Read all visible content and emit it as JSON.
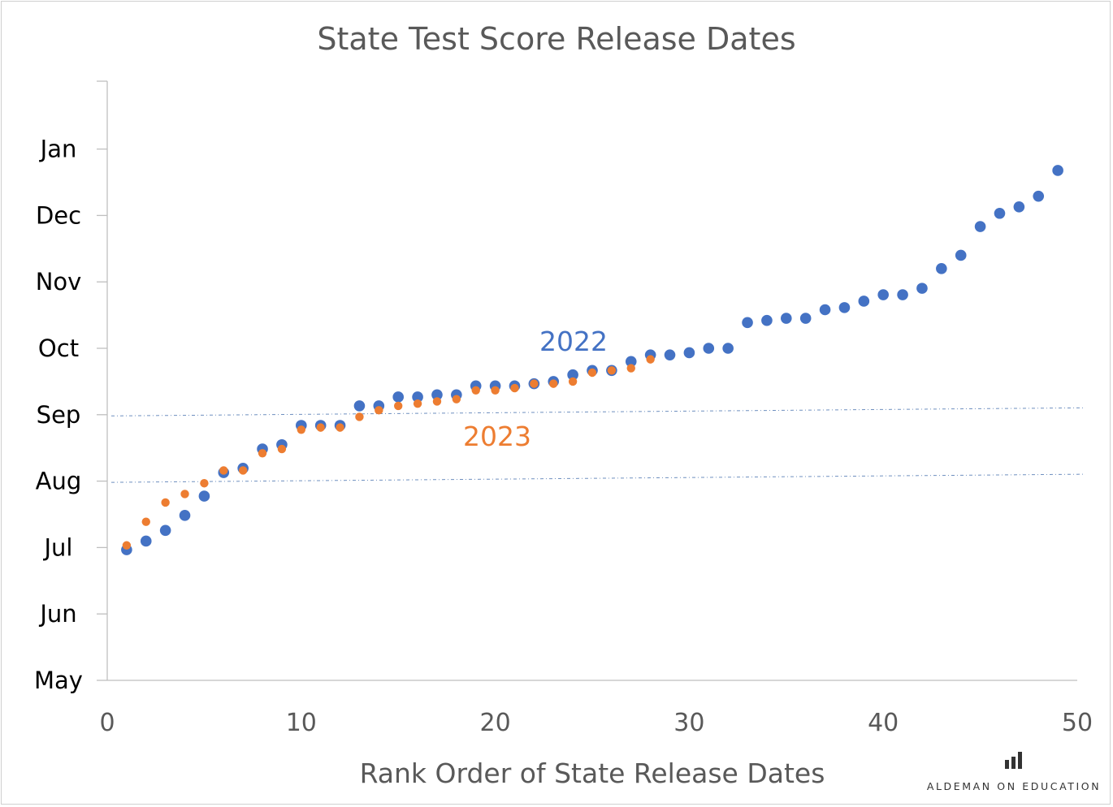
{
  "chart_data": {
    "type": "scatter",
    "title": "State Test Score Release Dates",
    "xlabel": "Rank Order of State Release Dates",
    "ylabel": "",
    "xlim": [
      0,
      50
    ],
    "x_ticks": [
      0,
      10,
      20,
      30,
      40,
      50
    ],
    "y_month_ticks": [
      "May",
      "Jun",
      "Jul",
      "Aug",
      "Sep",
      "Oct",
      "Nov",
      "Dec",
      "Jan"
    ],
    "y_unit": "month",
    "ylim": [
      "May 1",
      "Jan 22"
    ],
    "grid": false,
    "reference_lines": [
      "Aug 1",
      "Sep 1"
    ],
    "series": [
      {
        "name": "2022",
        "color": "#4472C4",
        "x": [
          1,
          2,
          3,
          4,
          5,
          6,
          7,
          8,
          9,
          10,
          11,
          12,
          13,
          14,
          15,
          16,
          17,
          18,
          19,
          20,
          21,
          22,
          23,
          24,
          25,
          26,
          27,
          28,
          29,
          30,
          31,
          32,
          33,
          34,
          35,
          36,
          37,
          38,
          39,
          40,
          41,
          42,
          43,
          44,
          45,
          46,
          47,
          48,
          49
        ],
        "y": [
          "Jun 30",
          "Jul 4",
          "Jul 9",
          "Jul 16",
          "Jul 25",
          "Aug 5",
          "Aug 7",
          "Aug 16",
          "Aug 18",
          "Aug 27",
          "Aug 27",
          "Aug 27",
          "Sep 5",
          "Sep 5",
          "Sep 9",
          "Sep 9",
          "Sep 10",
          "Sep 10",
          "Sep 14",
          "Sep 14",
          "Sep 14",
          "Sep 15",
          "Sep 16",
          "Sep 19",
          "Sep 21",
          "Sep 21",
          "Sep 25",
          "Sep 28",
          "Sep 28",
          "Sep 29",
          "Oct 1",
          "Oct 1",
          "Oct 13",
          "Oct 14",
          "Oct 15",
          "Oct 15",
          "Oct 19",
          "Oct 20",
          "Oct 23",
          "Oct 26",
          "Oct 26",
          "Oct 29",
          "Nov 7",
          "Nov 13",
          "Nov 26",
          "Dec 2",
          "Dec 5",
          "Dec 10",
          "Dec 22"
        ]
      },
      {
        "name": "2023",
        "color": "#ED7D31",
        "x": [
          1,
          2,
          3,
          4,
          5,
          6,
          7,
          8,
          9,
          10,
          11,
          12,
          13,
          14,
          15,
          16,
          17,
          18,
          19,
          20,
          21,
          22,
          23,
          24,
          25,
          26,
          27,
          28
        ],
        "y": [
          "Jul 2",
          "Jul 13",
          "Jul 22",
          "Jul 26",
          "Jul 31",
          "Aug 6",
          "Aug 6",
          "Aug 14",
          "Aug 16",
          "Aug 25",
          "Aug 26",
          "Aug 26",
          "Aug 31",
          "Sep 3",
          "Sep 5",
          "Sep 6",
          "Sep 7",
          "Sep 8",
          "Sep 12",
          "Sep 12",
          "Sep 13",
          "Sep 15",
          "Sep 15",
          "Sep 16",
          "Sep 20",
          "Sep 21",
          "Sep 22",
          "Sep 26"
        ]
      }
    ],
    "annotations": [
      {
        "text": "2022",
        "series": "2022"
      },
      {
        "text": "2023",
        "series": "2023"
      }
    ]
  },
  "branding": {
    "text": "ALDEMAN ON EDUCATION",
    "icon": "bar-chart-icon"
  }
}
